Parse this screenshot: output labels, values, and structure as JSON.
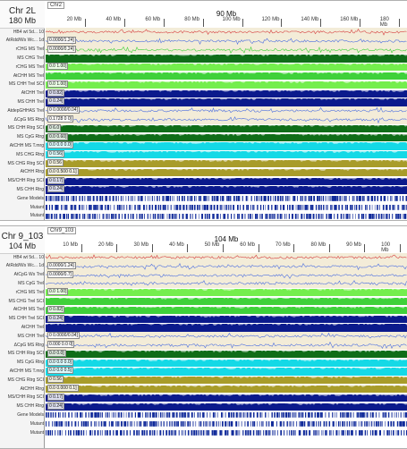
{
  "colors": {
    "light_green": "#74ee4d",
    "green": "#3fd13a",
    "dark_green": "#0f6d18",
    "navy": "#0b1a8c",
    "cyan": "#14d9e6",
    "olive": "#a89c2a",
    "blue_line": "#4d6fe0",
    "red_line": "#d64040",
    "cream": "#f3ecd8",
    "gene": "#102a9a"
  },
  "panels": [
    {
      "chrom": "Chr 2L",
      "length": "180 Mb",
      "region_tag": "Chr2",
      "center_label": "90 Mb",
      "ticks": [
        "20 Mb",
        "40 Mb",
        "60 Mb",
        "80 Mb",
        "100 Mb",
        "120 Mb",
        "140 Mb",
        "160 Mb",
        "180 Mb"
      ],
      "tracks": [
        {
          "label": "HB4 wt 5d... 10",
          "type": "wiggle",
          "scale": "",
          "color": "red_line"
        },
        {
          "label": "AtRdd/Ws Wc... 1d",
          "type": "wiggle",
          "scale": "0.0000/1.24]",
          "color": "blue_line"
        },
        {
          "label": "rCHG MS Trel",
          "type": "wiggle",
          "scale": "0.0000/0.24]",
          "color": "green"
        },
        {
          "label": "MS CHG Trel",
          "type": "dense",
          "scale": "",
          "color": "dark_green"
        },
        {
          "label": "rCHG MS Trel",
          "type": "solid",
          "scale": "0.0 1.00]",
          "color": "light_green"
        },
        {
          "label": "AtCHH MS Trel",
          "type": "solid",
          "scale": "",
          "color": "green"
        },
        {
          "label": "MS CHH Trel SCI",
          "type": "solid",
          "scale": "0.0 1.00]",
          "color": "light_green"
        },
        {
          "label": "AtCHH Trel",
          "type": "solid",
          "scale": "0 0.82]",
          "color": "navy"
        },
        {
          "label": "MS CHH Trel",
          "type": "solid",
          "scale": "0 0.24]",
          "color": "navy"
        },
        {
          "label": "AtdepGHHAS Trel",
          "type": "wiggle",
          "scale": "0 0.0000/0.04]",
          "color": "blue_line"
        },
        {
          "label": "ΔCpG MS Rtrg",
          "type": "wiggle",
          "scale": "0.1728 0 0]",
          "color": "blue_line"
        },
        {
          "label": "MS CHH Rtrg SCI",
          "type": "solid",
          "scale": "0 6.0",
          "color": "dark_green"
        },
        {
          "label": "MS CpG Rtrg",
          "type": "solid",
          "scale": "0.0 0.60]",
          "color": "dark_green"
        },
        {
          "label": "AtCHH MS T.mrg",
          "type": "solid",
          "scale": "0.0 0.0 0.0]",
          "color": "cyan"
        },
        {
          "label": "MS CHG Rtrg",
          "type": "solid",
          "scale": "0 0.56]",
          "color": "cyan"
        },
        {
          "label": "MS CHG Rtrg SCI",
          "type": "solid",
          "scale": "0 0.56",
          "color": "olive"
        },
        {
          "label": "AtCHH Rtrg",
          "type": "solid",
          "scale": "0.0 0.500 0.1]",
          "color": "olive"
        },
        {
          "label": "MS/CHH Rtrg SCI",
          "type": "solid",
          "scale": "0 0.17]",
          "color": "navy"
        },
        {
          "label": "MS CHH Rtrg",
          "type": "solid",
          "scale": "0 0.24]",
          "color": "navy"
        },
        {
          "label": "Gene Models",
          "type": "genes",
          "scale": "",
          "color": "gene"
        },
        {
          "label": "Mutant",
          "type": "genes",
          "scale": "",
          "color": "gene"
        },
        {
          "label": "Mutant",
          "type": "genes",
          "scale": "",
          "color": "gene"
        }
      ]
    },
    {
      "chrom": "Chr 9_103",
      "length": "104 Mb",
      "region_tag": "Chr9_103",
      "center_label": "104 Mb",
      "ticks": [
        "10 Mb",
        "20 Mb",
        "30 Mb",
        "40 Mb",
        "50 Mb",
        "60 Mb",
        "70 Mb",
        "80 Mb",
        "90 Mb",
        "100 Mb"
      ],
      "tracks": [
        {
          "label": "HB4 wt 5d... 10",
          "type": "wiggle",
          "scale": "",
          "color": "red_line"
        },
        {
          "label": "AtRdd/Ws Wc... 1d",
          "type": "wiggle",
          "scale": "0.0000/1.24]",
          "color": "blue_line"
        },
        {
          "label": "AtCpG Ws Trel",
          "type": "wiggle",
          "scale": "0.0000/0.7]",
          "color": "blue_line"
        },
        {
          "label": "MS CpG Trel",
          "type": "wiggle",
          "scale": "",
          "color": "blue_line"
        },
        {
          "label": "rCHG MS Trel",
          "type": "solid",
          "scale": "0.0 1.00]",
          "color": "light_green"
        },
        {
          "label": "MS CHG Trel SCI",
          "type": "solid",
          "scale": "",
          "color": "green"
        },
        {
          "label": "AtCHH MS Trel",
          "type": "solid",
          "scale": "0 0.82]",
          "color": "green"
        },
        {
          "label": "MS CHH Trel SCI",
          "type": "solid",
          "scale": "0 0.24]",
          "color": "navy"
        },
        {
          "label": "AtCHH Trel",
          "type": "solid",
          "scale": "",
          "color": "navy"
        },
        {
          "label": "MS CHH Trel",
          "type": "wiggle",
          "scale": "0 0.0000/0.04]",
          "color": "blue_line"
        },
        {
          "label": "ΔCpG MS Rtrg",
          "type": "wiggle",
          "scale": "0.000 0.0 0]",
          "color": "blue_line"
        },
        {
          "label": "MS CHH Rtrg SCI",
          "type": "solid",
          "scale": "0.0 0.0]",
          "color": "dark_green"
        },
        {
          "label": "MS CpG Rtrg",
          "type": "solid",
          "scale": "0.0 0.0 0.0]",
          "color": "cyan"
        },
        {
          "label": "AtCHH MS T.mrg",
          "type": "solid",
          "scale": "0.0 0.0 0.5]",
          "color": "cyan"
        },
        {
          "label": "MS CHG Rtrg SCI",
          "type": "solid",
          "scale": "0 0.56",
          "color": "olive"
        },
        {
          "label": "AtCHH Rtrg",
          "type": "solid",
          "scale": "0.0 0.000 0.1]",
          "color": "olive"
        },
        {
          "label": "MS/CHH Rtrg SCI",
          "type": "solid",
          "scale": "0 0.17]",
          "color": "navy"
        },
        {
          "label": "MS CHH Rtrg",
          "type": "solid",
          "scale": "0 0.24]",
          "color": "navy"
        },
        {
          "label": "Gene Models",
          "type": "genes",
          "scale": "",
          "color": "gene"
        },
        {
          "label": "Mutant",
          "type": "genes",
          "scale": "",
          "color": "gene"
        },
        {
          "label": "Mutant",
          "type": "genes",
          "scale": "",
          "color": "gene"
        }
      ]
    }
  ]
}
